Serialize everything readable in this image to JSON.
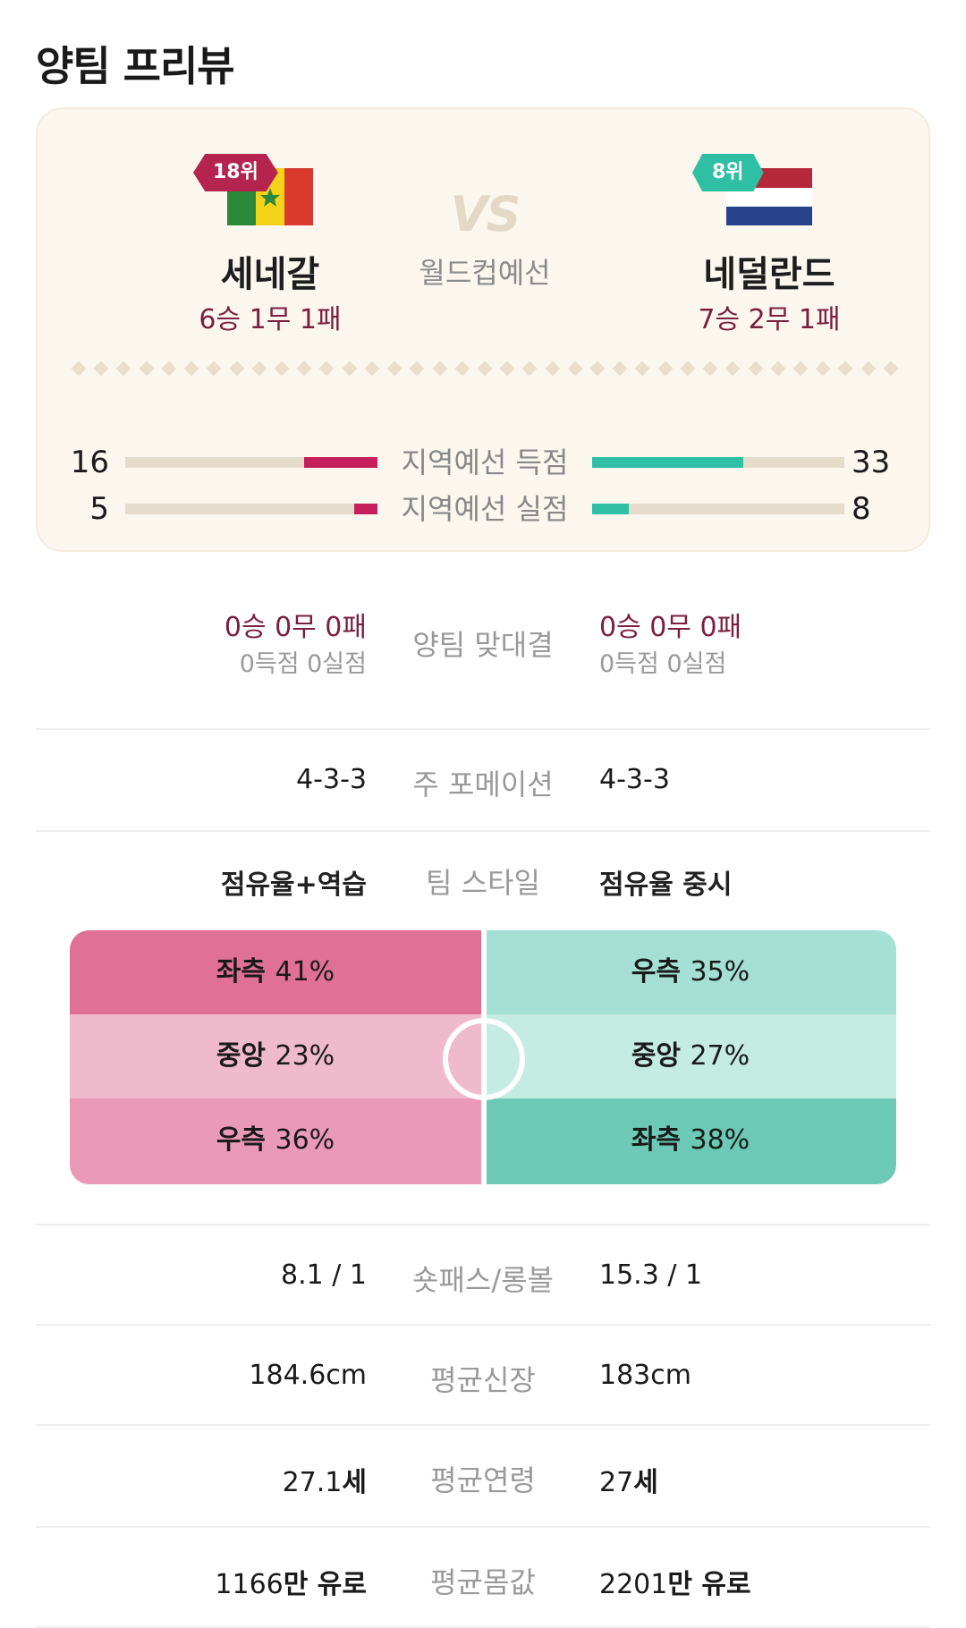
{
  "page_title": "양팀 프리뷰",
  "vs": {
    "text": "VS",
    "subtitle": "월드컵예선"
  },
  "team_left": {
    "rank": "18위",
    "name": "세네갈",
    "record": "6승 1무 1패",
    "flag": "senegal-flag-icon",
    "color": "#c41f5a"
  },
  "team_right": {
    "rank": "8위",
    "name": "네덜란드",
    "record": "7승 2무 1패",
    "flag": "netherlands-flag-icon",
    "color": "#2fbfa5"
  },
  "qualifier_stats": [
    {
      "label": "지역예선 득점",
      "left": "16",
      "right": "33",
      "left_value": 16,
      "right_value": 33,
      "max": 55
    },
    {
      "label": "지역예선 실점",
      "left": "5",
      "right": "8",
      "left_value": 5,
      "right_value": 8,
      "max": 55
    }
  ],
  "head_to_head": {
    "label": "양팀 맞대결",
    "left_record": "0승 0무 0패",
    "left_goals": "0득점 0실점",
    "right_record": "0승 0무 0패",
    "right_goals": "0득점 0실점"
  },
  "formation": {
    "label": "주 포메이션",
    "left": "4-3-3",
    "right": "4-3-3"
  },
  "team_style": {
    "label": "팀 스타일",
    "left": "점유율+역습",
    "right": "점유율 중시"
  },
  "attack_zones": {
    "left": [
      {
        "zone": "좌측",
        "pct": "41%",
        "color": "#e07096"
      },
      {
        "zone": "중앙",
        "pct": "23%",
        "color": "#f0bacd"
      },
      {
        "zone": "우측",
        "pct": "36%",
        "color": "#ea9ab6"
      }
    ],
    "right": [
      {
        "zone": "우측",
        "pct": "35%",
        "color": "#a4e0d3"
      },
      {
        "zone": "중앙",
        "pct": "27%",
        "color": "#c5ece3"
      },
      {
        "zone": "좌측",
        "pct": "38%",
        "color": "#6cc9b6"
      }
    ]
  },
  "short_long": {
    "label": "숏패스/롱볼",
    "left": "8.1 / 1",
    "right": "15.3 / 1"
  },
  "avg_height": {
    "label": "평균신장",
    "left": "184.6cm",
    "right": "183cm"
  },
  "avg_age": {
    "label": "평균연령",
    "left_num": "27.1",
    "left_unit": "세",
    "right_num": "27",
    "right_unit": "세"
  },
  "avg_value": {
    "label": "평균몸값",
    "left_num": "1166",
    "left_unit": "만 유로",
    "right_num": "2201",
    "right_unit": "만 유로"
  }
}
